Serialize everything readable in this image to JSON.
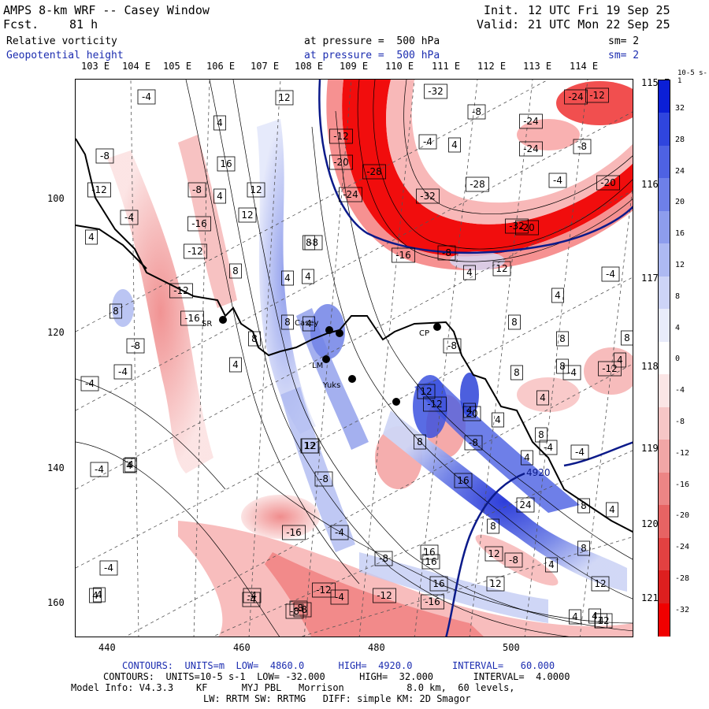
{
  "header": {
    "model_title": "AMPS 8-km WRF -- Casey Window",
    "init_label": "Init.",
    "init_value": "12 UTC Fri 19 Sep 25",
    "fcst_label": "Fcst.",
    "fcst_value": "81 h",
    "valid_label": "Valid:",
    "valid_value": "21 UTC Mon 22 Sep 25",
    "field1_name": "Relative vorticity",
    "field1_level": "at pressure =  500 hPa",
    "field1_sm": "sm= 2",
    "field2_name": "Geopotential height",
    "field2_level": "at pressure =  500 hPa",
    "field2_sm": "sm= 2"
  },
  "map": {
    "top_longitudes": [
      "103 E",
      "104 E",
      "105 E",
      "106 E",
      "107 E",
      "108 E",
      "109 E",
      "110 E",
      "111 E",
      "112 E",
      "113 E",
      "114 E"
    ],
    "right_longitudes": [
      "115 E",
      "116 E",
      "117 E",
      "118 E",
      "119 E",
      "120 E",
      "121 E"
    ],
    "y_axis": [
      "100",
      "120",
      "140",
      "160"
    ],
    "x_axis": [
      "440",
      "460",
      "480",
      "500"
    ],
    "station_labels": {
      "sr": "SR",
      "casey": "Casey",
      "cp": "CP",
      "lm": "LM",
      "yuks": "Yuks"
    },
    "vorticity_labels": [
      {
        "t": "-4"
      },
      {
        "t": "4"
      },
      {
        "t": "-8"
      },
      {
        "t": "-12"
      },
      {
        "t": "-4"
      },
      {
        "t": "4"
      },
      {
        "t": "-8"
      },
      {
        "t": "4"
      },
      {
        "t": "12"
      },
      {
        "t": "16"
      },
      {
        "t": "12"
      },
      {
        "t": "-16"
      },
      {
        "t": "-12"
      },
      {
        "t": "-12"
      },
      {
        "t": "8"
      },
      {
        "t": "-8"
      },
      {
        "t": "8"
      },
      {
        "t": "-16"
      },
      {
        "t": "8"
      },
      {
        "t": "4"
      },
      {
        "t": "-4"
      },
      {
        "t": "-4"
      },
      {
        "t": "12"
      },
      {
        "t": "-8"
      },
      {
        "t": "4"
      },
      {
        "t": "-8"
      },
      {
        "t": "-4"
      },
      {
        "t": "8"
      },
      {
        "t": "4"
      },
      {
        "t": "12"
      },
      {
        "t": "8"
      },
      {
        "t": "4"
      },
      {
        "t": "4"
      },
      {
        "t": "-8"
      },
      {
        "t": "-12"
      },
      {
        "t": "-20"
      },
      {
        "t": "-24"
      },
      {
        "t": "-28"
      },
      {
        "t": "-4"
      },
      {
        "t": "-32"
      },
      {
        "t": "4"
      },
      {
        "t": "-32"
      },
      {
        "t": "-8"
      },
      {
        "t": "-28"
      },
      {
        "t": "-24"
      },
      {
        "t": "-12"
      },
      {
        "t": "-24"
      },
      {
        "t": "-24"
      },
      {
        "t": "-8"
      },
      {
        "t": "-4"
      },
      {
        "t": "-20"
      },
      {
        "t": "-20"
      },
      {
        "t": "-32"
      },
      {
        "t": "-16"
      },
      {
        "t": "-8"
      },
      {
        "t": "8"
      },
      {
        "t": "4"
      },
      {
        "t": "12"
      },
      {
        "t": "-4"
      },
      {
        "t": "4"
      },
      {
        "t": "8"
      },
      {
        "t": "8"
      },
      {
        "t": "8"
      },
      {
        "t": "4"
      },
      {
        "t": "-8"
      },
      {
        "t": "8"
      },
      {
        "t": "4"
      },
      {
        "t": "-12"
      },
      {
        "t": "-4"
      },
      {
        "t": "12"
      },
      {
        "t": "-12"
      },
      {
        "t": "8"
      },
      {
        "t": "4"
      },
      {
        "t": "12"
      },
      {
        "t": "20"
      },
      {
        "t": "-8"
      },
      {
        "t": "4"
      },
      {
        "t": "8"
      },
      {
        "t": "-4"
      },
      {
        "t": "16"
      },
      {
        "t": "4"
      },
      {
        "t": "-4"
      },
      {
        "t": "24"
      },
      {
        "t": "4"
      },
      {
        "t": "8"
      },
      {
        "t": "-8"
      },
      {
        "t": "4"
      },
      {
        "t": "8"
      },
      {
        "t": "8"
      },
      {
        "t": "-16"
      },
      {
        "t": "-4"
      },
      {
        "t": "-8"
      },
      {
        "t": "16"
      },
      {
        "t": "-8"
      },
      {
        "t": "-4"
      },
      {
        "t": "16"
      },
      {
        "t": "12"
      },
      {
        "t": "-12"
      },
      {
        "t": "-12"
      },
      {
        "t": "-16"
      },
      {
        "t": "12"
      },
      {
        "t": "-4"
      },
      {
        "t": "-8"
      },
      {
        "t": "4"
      },
      {
        "t": "-4"
      },
      {
        "t": "4"
      },
      {
        "t": "-4"
      },
      {
        "t": "4"
      },
      {
        "t": "16"
      },
      {
        "t": "12"
      },
      {
        "t": "4"
      },
      {
        "t": "4"
      },
      {
        "t": "4"
      },
      {
        "t": "12"
      }
    ],
    "height_contour_label": "4920"
  },
  "colorbar": {
    "unit": "10-5 s-1",
    "ticks": [
      "32",
      "28",
      "24",
      "20",
      "16",
      "12",
      "8",
      "4",
      "0",
      "-4",
      "-8",
      "-12",
      "-16",
      "-20",
      "-24",
      "-28",
      "-32"
    ],
    "colors": [
      "#0b1fd6",
      "#2f45de",
      "#4e62e3",
      "#6e80e8",
      "#8d9ded",
      "#adb9f2",
      "#cdd4f7",
      "#e8ebfb",
      "#ffffff",
      "#fbe5e5",
      "#f6c6c6",
      "#f1a6a6",
      "#ec8585",
      "#e76363",
      "#e24141",
      "#dd1f1f",
      "#f00000"
    ]
  },
  "footer": {
    "contour1": "CONTOURS:  UNITS=m  LOW=  4860.0      HIGH=  4920.0       INTERVAL=   60.000",
    "contour2": "CONTOURS:  UNITS=10-5 s-1  LOW= -32.000      HIGH=  32.000       INTERVAL=  4.0000",
    "model_info": "Model Info: V4.3.3    KF      MYJ PBL   Morrison           8.0 km,  60 levels,",
    "model_info2": "LW: RRTM SW: RRTMG   DIFF: simple KM: 2D Smagor"
  }
}
